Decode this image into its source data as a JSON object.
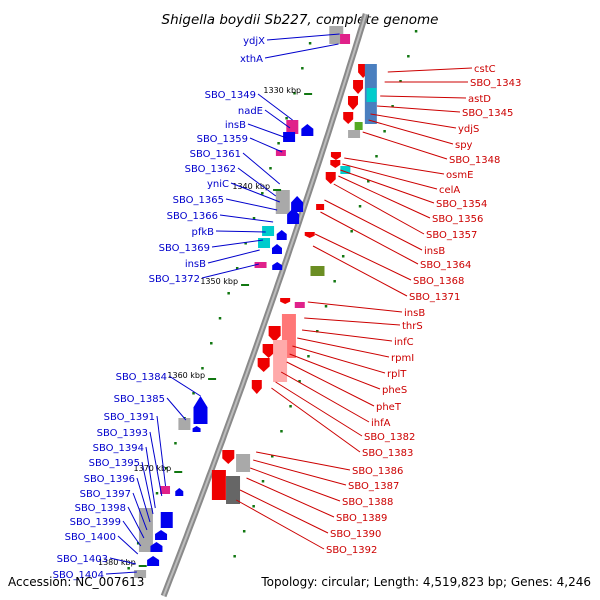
{
  "title": "Shigella boydii Sb227, complete genome",
  "footer": {
    "accession": "Accession: NC_007613",
    "summary": "Topology: circular; Length: 4,519,823 bp; Genes: 4,246"
  },
  "colors": {
    "left_label": "#0000cc",
    "right_label": "#cc0000",
    "backbone": "#8a8a8a",
    "tick": "#117711"
  },
  "kbp_marks": [
    {
      "label": "1330 kbp"
    },
    {
      "label": "1340 kbp"
    },
    {
      "label": "1350 kbp"
    },
    {
      "label": "1360 kbp"
    },
    {
      "label": "1370 kbp"
    },
    {
      "label": "1380 kbp"
    }
  ],
  "left_genes": [
    {
      "label": "ydjX"
    },
    {
      "label": "xthA"
    },
    {
      "label": "SBO_1349"
    },
    {
      "label": "nadE"
    },
    {
      "label": "insB"
    },
    {
      "label": "SBO_1359"
    },
    {
      "label": "SBO_1361"
    },
    {
      "label": "SBO_1362"
    },
    {
      "label": "yniC"
    },
    {
      "label": "SBO_1365"
    },
    {
      "label": "SBO_1366"
    },
    {
      "label": "pfkB"
    },
    {
      "label": "SBO_1369"
    },
    {
      "label": "insB"
    },
    {
      "label": "SBO_1372"
    },
    {
      "label": "SBO_1384"
    },
    {
      "label": "SBO_1385"
    },
    {
      "label": "SBO_1391"
    },
    {
      "label": "SBO_1393"
    },
    {
      "label": "SBO_1394"
    },
    {
      "label": "SBO_1395"
    },
    {
      "label": "SBO_1396"
    },
    {
      "label": "SBO_1397"
    },
    {
      "label": "SBO_1398"
    },
    {
      "label": "SBO_1399"
    },
    {
      "label": "SBO_1400"
    },
    {
      "label": "SBO_1403"
    },
    {
      "label": "SBO_1404"
    }
  ],
  "right_genes": [
    {
      "label": "cstC"
    },
    {
      "label": "SBO_1343"
    },
    {
      "label": "astD"
    },
    {
      "label": "SBO_1345"
    },
    {
      "label": "ydjS"
    },
    {
      "label": "spy"
    },
    {
      "label": "SBO_1348"
    },
    {
      "label": "osmE"
    },
    {
      "label": "celA"
    },
    {
      "label": "SBO_1354"
    },
    {
      "label": "SBO_1356"
    },
    {
      "label": "SBO_1357"
    },
    {
      "label": "insB"
    },
    {
      "label": "SBO_1364"
    },
    {
      "label": "SBO_1368"
    },
    {
      "label": "SBO_1371"
    },
    {
      "label": "insB"
    },
    {
      "label": "thrS"
    },
    {
      "label": "infC"
    },
    {
      "label": "rpmI"
    },
    {
      "label": "rplT"
    },
    {
      "label": "pheS"
    },
    {
      "label": "pheT"
    },
    {
      "label": "ihfA"
    },
    {
      "label": "SBO_1382"
    },
    {
      "label": "SBO_1383"
    },
    {
      "label": "SBO_1386"
    },
    {
      "label": "SBO_1387"
    },
    {
      "label": "SBO_1388"
    },
    {
      "label": "SBO_1389"
    },
    {
      "label": "SBO_1390"
    },
    {
      "label": "SBO_1392"
    }
  ]
}
